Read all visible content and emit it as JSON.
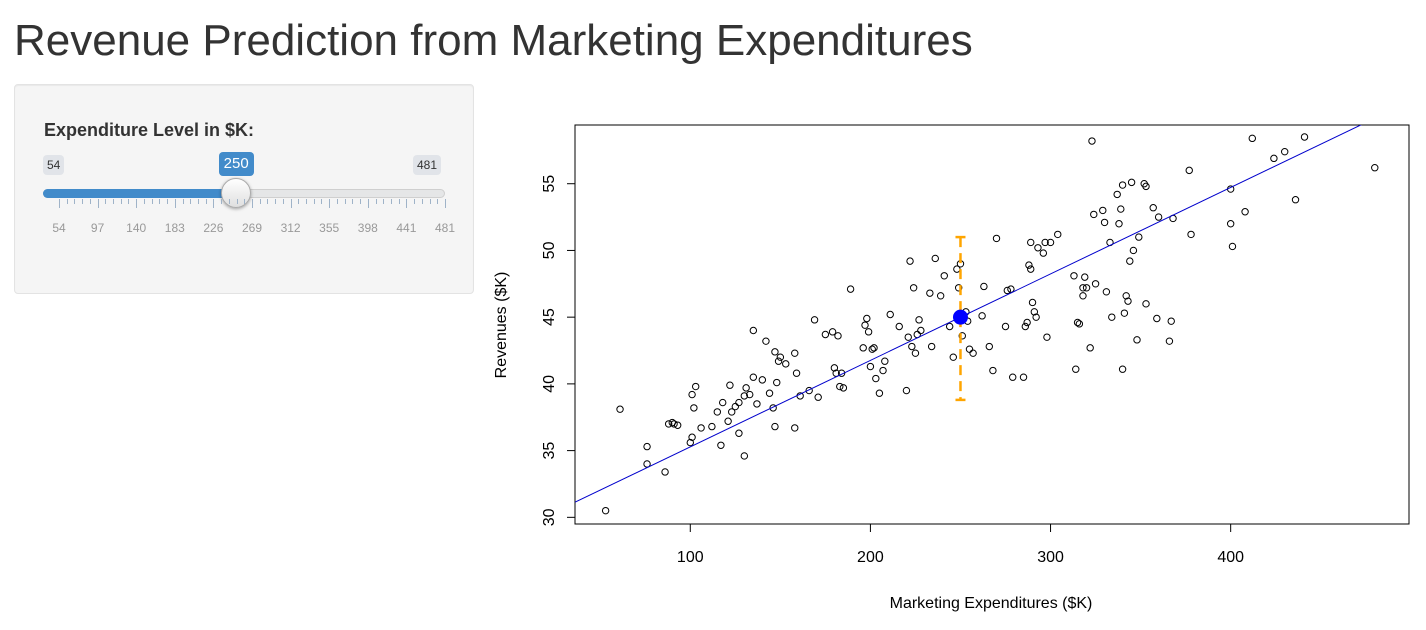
{
  "page": {
    "title": "Revenue Prediction from Marketing Expenditures"
  },
  "slider": {
    "label": "Expenditure Level in $K:",
    "min": 54,
    "max": 481,
    "value": 250,
    "min_label": "54",
    "max_label": "481",
    "value_label": "250",
    "tick_labels": [
      "54",
      "97",
      "140",
      "183",
      "226",
      "269",
      "312",
      "355",
      "398",
      "441",
      "481"
    ],
    "accent_color": "#428bca"
  },
  "chart_data": {
    "type": "scatter",
    "title": "",
    "xlabel": "Marketing Expenditures ($K)",
    "ylabel": "Revenues ($K)",
    "xlim": [
      36,
      499
    ],
    "ylim": [
      29.5,
      59.4
    ],
    "xticks": [
      100,
      200,
      300,
      400
    ],
    "yticks": [
      30,
      35,
      40,
      45,
      50,
      55
    ],
    "grid": false,
    "colors": {
      "points": "#000000",
      "regression_line": "#0000cc",
      "prediction_point": "#0000ff",
      "interval": "#ffa500"
    },
    "points": [
      [
        53,
        30.5
      ],
      [
        61,
        38.1
      ],
      [
        76,
        34.0
      ],
      [
        76,
        35.3
      ],
      [
        86,
        33.4
      ],
      [
        88,
        37.0
      ],
      [
        90,
        37.1
      ],
      [
        91,
        37.0
      ],
      [
        93,
        36.9
      ],
      [
        100,
        35.6
      ],
      [
        101,
        36.0
      ],
      [
        101,
        39.2
      ],
      [
        102,
        38.2
      ],
      [
        103,
        39.8
      ],
      [
        106,
        36.7
      ],
      [
        112,
        36.8
      ],
      [
        115,
        37.9
      ],
      [
        117,
        35.4
      ],
      [
        118,
        38.6
      ],
      [
        121,
        37.2
      ],
      [
        122,
        39.9
      ],
      [
        123,
        37.9
      ],
      [
        125,
        38.3
      ],
      [
        127,
        38.6
      ],
      [
        127,
        36.3
      ],
      [
        130,
        39.1
      ],
      [
        130,
        34.6
      ],
      [
        131,
        39.7
      ],
      [
        133,
        39.2
      ],
      [
        135,
        40.5
      ],
      [
        135,
        44.0
      ],
      [
        137,
        38.5
      ],
      [
        140,
        40.3
      ],
      [
        142,
        43.2
      ],
      [
        144,
        39.3
      ],
      [
        146,
        38.2
      ],
      [
        147,
        42.4
      ],
      [
        147,
        36.8
      ],
      [
        148,
        40.1
      ],
      [
        149,
        41.7
      ],
      [
        150,
        42.0
      ],
      [
        153,
        41.5
      ],
      [
        158,
        36.7
      ],
      [
        158,
        42.3
      ],
      [
        159,
        40.8
      ],
      [
        161,
        39.1
      ],
      [
        166,
        39.5
      ],
      [
        169,
        44.8
      ],
      [
        171,
        39.0
      ],
      [
        175,
        43.7
      ],
      [
        179,
        43.9
      ],
      [
        180,
        41.2
      ],
      [
        181,
        40.8
      ],
      [
        182,
        43.6
      ],
      [
        183,
        39.8
      ],
      [
        184,
        40.8
      ],
      [
        185,
        39.7
      ],
      [
        189,
        47.1
      ],
      [
        196,
        42.7
      ],
      [
        197,
        44.4
      ],
      [
        198,
        44.9
      ],
      [
        199,
        43.9
      ],
      [
        200,
        41.3
      ],
      [
        201,
        42.6
      ],
      [
        202,
        42.7
      ],
      [
        203,
        40.4
      ],
      [
        205,
        39.3
      ],
      [
        207,
        41.0
      ],
      [
        208,
        41.7
      ],
      [
        211,
        45.2
      ],
      [
        216,
        44.3
      ],
      [
        220,
        39.5
      ],
      [
        221,
        43.5
      ],
      [
        222,
        49.2
      ],
      [
        223,
        42.8
      ],
      [
        224,
        47.2
      ],
      [
        225,
        42.3
      ],
      [
        226,
        43.7
      ],
      [
        227,
        44.8
      ],
      [
        228,
        44.0
      ],
      [
        233,
        46.8
      ],
      [
        234,
        42.8
      ],
      [
        236,
        49.4
      ],
      [
        239,
        46.6
      ],
      [
        241,
        48.1
      ],
      [
        244,
        44.3
      ],
      [
        246,
        42.0
      ],
      [
        248,
        48.6
      ],
      [
        249,
        47.2
      ],
      [
        250,
        49.0
      ],
      [
        251,
        43.6
      ],
      [
        253,
        45.4
      ],
      [
        254,
        44.7
      ],
      [
        255,
        42.6
      ],
      [
        257,
        42.3
      ],
      [
        262,
        45.1
      ],
      [
        263,
        47.3
      ],
      [
        266,
        42.8
      ],
      [
        268,
        41.0
      ],
      [
        270,
        50.9
      ],
      [
        275,
        44.3
      ],
      [
        276,
        47.0
      ],
      [
        278,
        47.1
      ],
      [
        279,
        40.5
      ],
      [
        285,
        40.5
      ],
      [
        286,
        44.3
      ],
      [
        287,
        44.6
      ],
      [
        288,
        48.9
      ],
      [
        289,
        48.6
      ],
      [
        289,
        50.6
      ],
      [
        290,
        46.1
      ],
      [
        291,
        45.4
      ],
      [
        292,
        45.0
      ],
      [
        293,
        50.2
      ],
      [
        296,
        49.8
      ],
      [
        297,
        50.6
      ],
      [
        298,
        43.5
      ],
      [
        300,
        50.6
      ],
      [
        304,
        51.2
      ],
      [
        313,
        48.1
      ],
      [
        314,
        41.1
      ],
      [
        315,
        44.6
      ],
      [
        316,
        44.5
      ],
      [
        318,
        47.2
      ],
      [
        318,
        46.6
      ],
      [
        319,
        48.0
      ],
      [
        320,
        47.2
      ],
      [
        322,
        42.7
      ],
      [
        323,
        58.2
      ],
      [
        324,
        52.7
      ],
      [
        325,
        47.5
      ],
      [
        329,
        53.0
      ],
      [
        330,
        52.1
      ],
      [
        331,
        46.9
      ],
      [
        333,
        50.6
      ],
      [
        334,
        45.0
      ],
      [
        337,
        54.2
      ],
      [
        338,
        52.0
      ],
      [
        339,
        53.1
      ],
      [
        340,
        54.9
      ],
      [
        340,
        41.1
      ],
      [
        341,
        45.3
      ],
      [
        342,
        46.6
      ],
      [
        343,
        46.2
      ],
      [
        344,
        49.2
      ],
      [
        345,
        55.1
      ],
      [
        346,
        50.0
      ],
      [
        348,
        43.3
      ],
      [
        349,
        51.0
      ],
      [
        352,
        55.0
      ],
      [
        353,
        54.8
      ],
      [
        353,
        46.0
      ],
      [
        357,
        53.2
      ],
      [
        359,
        44.9
      ],
      [
        360,
        52.5
      ],
      [
        366,
        43.2
      ],
      [
        367,
        44.7
      ],
      [
        368,
        52.4
      ],
      [
        377,
        56.0
      ],
      [
        378,
        51.2
      ],
      [
        400,
        54.6
      ],
      [
        400,
        52.0
      ],
      [
        401,
        50.3
      ],
      [
        408,
        52.9
      ],
      [
        412,
        58.4
      ],
      [
        424,
        56.9
      ],
      [
        430,
        57.4
      ],
      [
        436,
        53.8
      ],
      [
        441,
        58.5
      ],
      [
        480,
        56.2
      ]
    ],
    "regression": {
      "intercept": 28.8,
      "slope": 0.0648
    },
    "prediction": {
      "x": 250,
      "y": 45.0,
      "lower": 38.8,
      "upper": 51.0
    }
  }
}
